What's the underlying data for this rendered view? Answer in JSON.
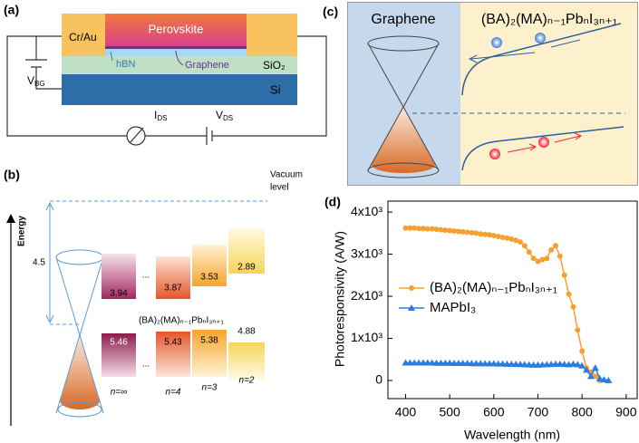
{
  "panel_a": {
    "label": "(a)",
    "contact": "Cr/Au",
    "perovskite": "Perovskite",
    "hbn": "hBN",
    "graphene": "Graphene",
    "oxide": "SiO₂",
    "substrate": "Si",
    "gate_voltage": {
      "text": "V",
      "sub": "BG"
    },
    "current": {
      "text": "I",
      "sub": "DS"
    },
    "voltage": {
      "text": "V",
      "sub": "DS"
    }
  },
  "panel_b": {
    "label": "(b)",
    "axis_label": "Energy",
    "vacuum_level": [
      "Vacuum",
      "level"
    ],
    "work_function": "4.5",
    "formula": "(BA)₂(MA)ₙ₋₁PbₙI₃ₙ₊₁",
    "ellipsis": "...",
    "columns": [
      {
        "n": "n=∞",
        "top": 3.94,
        "bottom": 5.46
      },
      {
        "n": "n=4",
        "top": 3.87,
        "bottom": 5.43
      },
      {
        "n": "n=3",
        "top": 3.53,
        "bottom": 5.38
      },
      {
        "n": "n=2",
        "top": 2.89,
        "bottom": 4.88
      }
    ]
  },
  "panel_c": {
    "label": "(c)",
    "left": "Graphene",
    "right": "(BA)₂(MA)ₙ₋₁PbₙI₃ₙ₊₁"
  },
  "chart_data": {
    "type": "line",
    "panel_label": "(d)",
    "x_label": "Wavelength (nm)",
    "y_label": "Photoresponsivity (A/W)",
    "xlim": [
      360,
      925
    ],
    "xticks": [
      400,
      500,
      600,
      700,
      800,
      900
    ],
    "ylim": [
      -430,
      4260
    ],
    "yticks": [
      0,
      {
        "value": 1000,
        "label": "1x10³"
      },
      {
        "value": 2000,
        "label": "2x10³"
      },
      {
        "value": 3000,
        "label": "3x10³"
      },
      {
        "value": 4000,
        "label": "4x10³"
      }
    ],
    "series": [
      {
        "name": "(BA)₂(MA)ₙ₋₁PbₙI₃ₙ₊₁",
        "color": "#f5a030",
        "marker": "circle",
        "x": [
          400,
          410,
          420,
          430,
          440,
          450,
          460,
          470,
          480,
          490,
          500,
          510,
          520,
          530,
          540,
          550,
          560,
          570,
          580,
          590,
          600,
          610,
          620,
          630,
          640,
          650,
          660,
          670,
          680,
          690,
          700,
          710,
          720,
          730,
          740,
          750,
          760,
          770,
          780,
          790,
          800,
          810,
          820,
          830,
          840
        ],
        "values": [
          3620,
          3620,
          3620,
          3610,
          3610,
          3600,
          3600,
          3590,
          3580,
          3570,
          3560,
          3550,
          3540,
          3530,
          3520,
          3510,
          3500,
          3480,
          3470,
          3460,
          3440,
          3420,
          3400,
          3380,
          3360,
          3330,
          3290,
          3200,
          3050,
          2900,
          2830,
          2870,
          2900,
          3100,
          3200,
          2950,
          2500,
          2050,
          1750,
          1200,
          700,
          300,
          200,
          100,
          0
        ]
      },
      {
        "name": "MAPbI₃",
        "color": "#2a7de1",
        "marker": "triangle",
        "x": [
          400,
          410,
          420,
          430,
          440,
          450,
          460,
          470,
          480,
          490,
          500,
          510,
          520,
          530,
          540,
          550,
          560,
          570,
          580,
          590,
          600,
          610,
          620,
          630,
          640,
          650,
          660,
          670,
          680,
          690,
          700,
          710,
          720,
          730,
          740,
          750,
          760,
          770,
          780,
          790,
          800,
          810,
          820,
          830,
          840,
          850,
          860
        ],
        "values": [
          420,
          420,
          420,
          420,
          420,
          420,
          420,
          415,
          415,
          415,
          415,
          410,
          410,
          410,
          410,
          405,
          405,
          405,
          400,
          400,
          400,
          395,
          395,
          390,
          390,
          385,
          385,
          380,
          375,
          370,
          370,
          375,
          380,
          385,
          390,
          390,
          385,
          380,
          390,
          380,
          350,
          250,
          100,
          300,
          50,
          20,
          0
        ]
      }
    ]
  }
}
